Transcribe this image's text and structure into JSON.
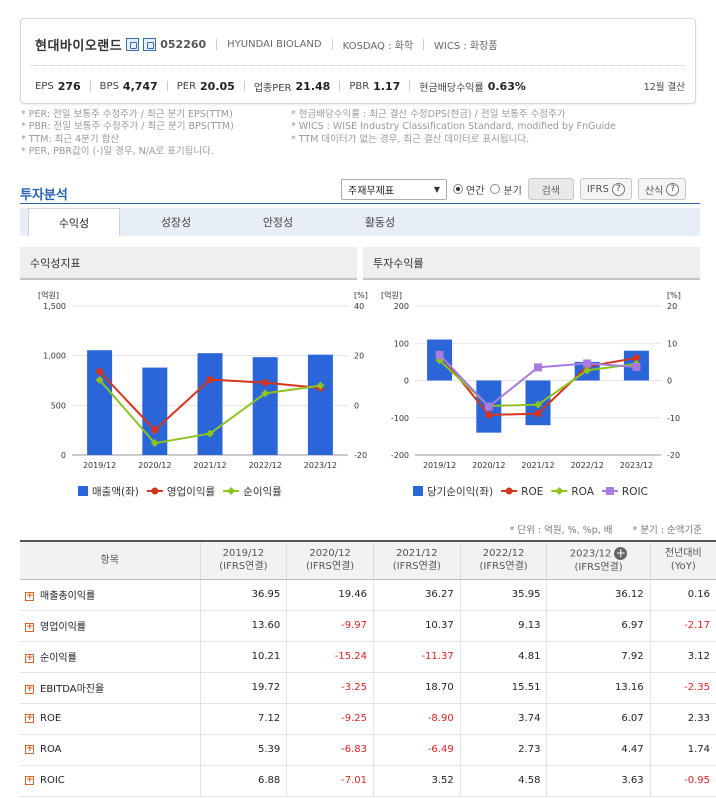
{
  "company": {
    "name": "현대바이오랜드",
    "code": "052260",
    "english_name": "HYUNDAI BIOLAND",
    "market": "KOSDAQ : 화학",
    "wics": "WICS : 화장품",
    "fiscal": "12월 결산",
    "metrics": [
      {
        "label": "EPS",
        "value": "276"
      },
      {
        "label": "BPS",
        "value": "4,747"
      },
      {
        "label": "PER",
        "value": "20.05"
      },
      {
        "label": "업종PER",
        "value": "21.48"
      },
      {
        "label": "PBR",
        "value": "1.17"
      },
      {
        "label": "현금배당수익률",
        "value": "0.63%"
      }
    ]
  },
  "notes": {
    "left": [
      "* PER: 전일 보통주 수정주가 / 최근 분기 EPS(TTM)",
      "* PBR: 전일 보통주 수정주가 / 최근 분기 BPS(TTM)",
      "* TTM: 최근 4분기 합산",
      "* PER, PBR값이 (-)일 경우, N/A로 표기됩니다."
    ],
    "right": [
      "* 현금배당수익률 : 최근 결산 수정DPS(현금) / 전일 보통주 수정주가",
      "* WICS : WISE Industry Classification Standard, modified by FnGuide",
      "* TTM 데이터가 없는 경우, 최근 결산 데이터로 표시됩니다."
    ]
  },
  "analysis": {
    "title": "투자분석",
    "select_value": "주재무제표",
    "radio_annual": "연간",
    "radio_quarter": "분기",
    "search_button": "검색",
    "ifrs_button": "IFRS",
    "formula_button": "산식",
    "help_glyph": "?",
    "tabs": [
      "수익성",
      "성장성",
      "안정성",
      "활동성"
    ]
  },
  "panels": {
    "left_title": "수익성지표",
    "right_title": "투자수익률"
  },
  "units_note": {
    "unit": "* 단위 : 억원, %, %p, 배",
    "quarter": "* 분기 : 순액기준"
  },
  "chart_data": [
    {
      "type": "bar",
      "title": "수익성지표",
      "categories": [
        "2019/12",
        "2020/12",
        "2021/12",
        "2022/12",
        "2023/12"
      ],
      "left_axis_label": "[억원]",
      "right_axis_label": "[%]",
      "ylim_left": [
        0,
        1500
      ],
      "left_ticks": [
        "1,500",
        "1,000",
        "500",
        "0"
      ],
      "ylim_right": [
        -20,
        40
      ],
      "right_ticks": [
        "40",
        "20",
        "0",
        "-20"
      ],
      "series": [
        {
          "name": "매출액(좌)",
          "kind": "bar",
          "axis": "left",
          "color": "#2b66d9",
          "values": [
            1055,
            880,
            1025,
            985,
            1010
          ]
        },
        {
          "name": "영업이익률",
          "kind": "line",
          "axis": "right",
          "color": "#d4351c",
          "values": [
            13.6,
            -9.97,
            10.37,
            9.13,
            6.97
          ]
        },
        {
          "name": "순이익률",
          "kind": "line",
          "axis": "right",
          "color": "#8dc21f",
          "values": [
            10.21,
            -15.24,
            -11.37,
            4.81,
            7.92
          ]
        }
      ],
      "legend": "bottom"
    },
    {
      "type": "bar",
      "title": "투자수익률",
      "categories": [
        "2019/12",
        "2020/12",
        "2021/12",
        "2022/12",
        "2023/12"
      ],
      "left_axis_label": "[억원]",
      "right_axis_label": "[%]",
      "ylim_left": [
        -200,
        200
      ],
      "left_ticks": [
        "200",
        "100",
        "0",
        "-100",
        "-200"
      ],
      "ylim_right": [
        -20,
        20
      ],
      "right_ticks": [
        "20",
        "10",
        "0",
        "-10",
        "-20"
      ],
      "series": [
        {
          "name": "당기순이익(좌)",
          "kind": "bar",
          "axis": "left",
          "color": "#2b66d9",
          "values": [
            110,
            -140,
            -120,
            50,
            80
          ]
        },
        {
          "name": "ROE",
          "kind": "line",
          "axis": "right",
          "color": "#d4351c",
          "values": [
            7.12,
            -9.25,
            -8.9,
            3.74,
            6.07
          ]
        },
        {
          "name": "ROA",
          "kind": "line",
          "axis": "right",
          "color": "#8dc21f",
          "values": [
            5.39,
            -6.83,
            -6.49,
            2.73,
            4.47
          ]
        },
        {
          "name": "ROIC",
          "kind": "line",
          "axis": "right",
          "color": "#a77be0",
          "values": [
            6.88,
            -7.01,
            3.52,
            4.58,
            3.63
          ]
        }
      ],
      "legend": "bottom"
    }
  ],
  "table": {
    "headers": [
      {
        "top": "항목",
        "bottom": ""
      },
      {
        "top": "2019/12",
        "bottom": "(IFRS연결)"
      },
      {
        "top": "2020/12",
        "bottom": "(IFRS연결)"
      },
      {
        "top": "2021/12",
        "bottom": "(IFRS연결)"
      },
      {
        "top": "2022/12",
        "bottom": "(IFRS연결)"
      },
      {
        "top": "2023/12",
        "bottom": "(IFRS연결)"
      },
      {
        "top": "전년대비",
        "bottom": "(YoY)"
      }
    ],
    "rows": [
      {
        "label": "매출총이익률",
        "values": [
          "36.95",
          "19.46",
          "36.27",
          "35.95",
          "36.12",
          "0.16"
        ]
      },
      {
        "label": "영업이익률",
        "values": [
          "13.60",
          "-9.97",
          "10.37",
          "9.13",
          "6.97",
          "-2.17"
        ]
      },
      {
        "label": "순이익률",
        "values": [
          "10.21",
          "-15.24",
          "-11.37",
          "4.81",
          "7.92",
          "3.12"
        ]
      },
      {
        "label": "EBITDA마진율",
        "values": [
          "19.72",
          "-3.25",
          "18.70",
          "15.51",
          "13.16",
          "-2.35"
        ]
      },
      {
        "label": "ROE",
        "values": [
          "7.12",
          "-9.25",
          "-8.90",
          "3.74",
          "6.07",
          "2.33"
        ]
      },
      {
        "label": "ROA",
        "values": [
          "5.39",
          "-6.83",
          "-6.49",
          "2.73",
          "4.47",
          "1.74"
        ]
      },
      {
        "label": "ROIC",
        "values": [
          "6.88",
          "-7.01",
          "3.52",
          "4.58",
          "3.63",
          "-0.95"
        ]
      }
    ]
  }
}
